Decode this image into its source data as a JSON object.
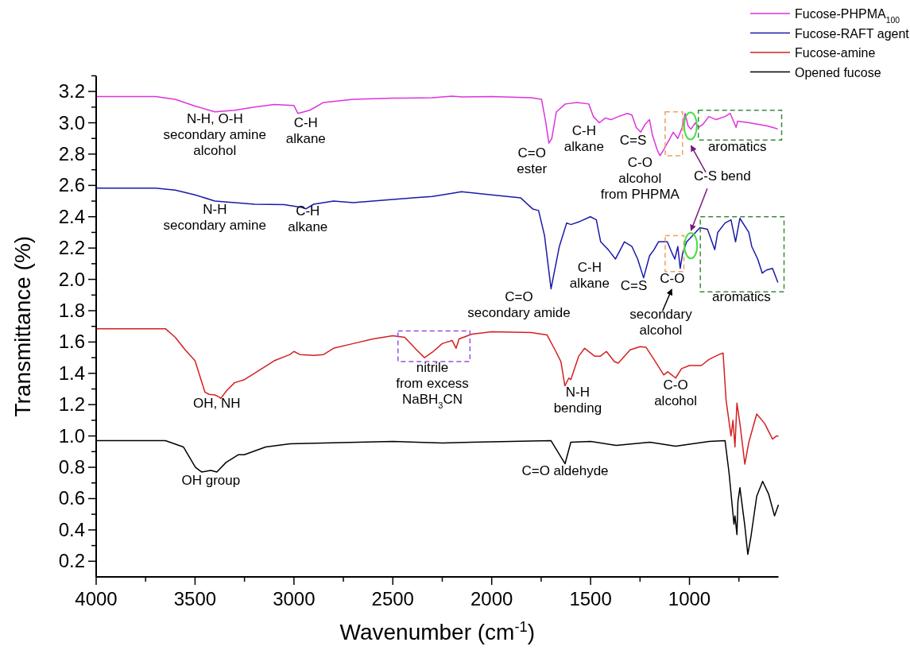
{
  "chart_data": {
    "type": "line",
    "xlabel": "Wavenumber (cm$^{-1}$)",
    "ylabel": "Transmittance (%)",
    "xlim": [
      4000,
      550
    ],
    "ylim": [
      0.1,
      3.3
    ],
    "xticks": [
      4000,
      {
        "value": 3750,
        "label": null
      },
      3500,
      {
        "value": 3250,
        "label": null
      },
      3000,
      {
        "value": 2750,
        "label": null
      },
      2500,
      {
        "value": 2250,
        "label": null
      },
      2000,
      {
        "value": 1750,
        "label": null
      },
      1500,
      {
        "value": 1250,
        "label": null
      },
      1000,
      {
        "value": 750,
        "label": null
      }
    ],
    "yticks": [
      0.2,
      {
        "value": 0.3,
        "label": null
      },
      0.4,
      {
        "value": 0.5,
        "label": null
      },
      0.6,
      {
        "value": 0.7,
        "label": null
      },
      0.8,
      {
        "value": 0.9,
        "label": null
      },
      {
        "value": 1,
        "label": "1.0"
      },
      {
        "value": 1.1,
        "label": null
      },
      1.2,
      {
        "value": 1.3,
        "label": null
      },
      1.4,
      {
        "value": 1.5,
        "label": null
      },
      1.6,
      {
        "value": 1.7,
        "label": null
      },
      1.8,
      {
        "value": 1.9,
        "label": null
      },
      {
        "value": 2,
        "label": "2.0"
      },
      {
        "value": 2.1,
        "label": null
      },
      2.2,
      {
        "value": 2.3,
        "label": null
      },
      2.4,
      {
        "value": 2.5,
        "label": null
      },
      2.6,
      {
        "value": 2.7,
        "label": null
      },
      2.8,
      {
        "value": 2.9,
        "label": null
      },
      {
        "value": 3,
        "label": "3.0"
      },
      {
        "value": 3.1,
        "label": null
      },
      3.2,
      {
        "value": 3.3,
        "label": null
      }
    ],
    "grid": false,
    "legend": "top right",
    "line_style": "solid",
    "marker": "none",
    "series": [
      {
        "name": "Fucose-PHPMA$_{100}$",
        "color": "#dd33dd",
        "x": [
          4000,
          3700,
          3600,
          3500,
          3400,
          3300,
          3200,
          3100,
          3000,
          2980,
          2950,
          2920,
          2850,
          2700,
          2500,
          2300,
          2200,
          2150,
          2000,
          1800,
          1748,
          1726,
          1711,
          1696,
          1673,
          1628,
          1569,
          1509,
          1486,
          1456,
          1426,
          1396,
          1359,
          1314,
          1291,
          1269,
          1247,
          1224,
          1202,
          1187,
          1164,
          1149,
          1134,
          1112,
          1082,
          1059,
          1037,
          1022,
          1007,
          992,
          970,
          955,
          932,
          902,
          865,
          820,
          794,
          764,
          757,
          697,
          652,
          607,
          577,
          553
        ],
        "values": [
          3.167,
          3.167,
          3.15,
          3.107,
          3.07,
          3.08,
          3.1,
          3.117,
          3.11,
          3.06,
          3.07,
          3.08,
          3.13,
          3.15,
          3.157,
          3.16,
          3.17,
          3.165,
          3.167,
          3.16,
          3.15,
          3.0,
          2.87,
          2.9,
          3.07,
          3.12,
          3.13,
          3.12,
          3.04,
          3.0,
          3.03,
          3.02,
          3.04,
          3.06,
          3.05,
          2.97,
          2.94,
          2.99,
          3.02,
          2.92,
          2.83,
          2.79,
          2.82,
          2.87,
          2.94,
          2.9,
          2.97,
          3.06,
          2.98,
          2.96,
          3.0,
          2.97,
          2.99,
          3.04,
          3.02,
          3.04,
          3.06,
          2.97,
          3.01,
          3.0,
          2.99,
          2.98,
          2.97,
          2.96
        ]
      },
      {
        "name": "Fucose-RAFT agent",
        "color": "#1a1aa8",
        "x": [
          4000,
          3700,
          3600,
          3500,
          3400,
          3300,
          3200,
          3050,
          2960,
          2940,
          2900,
          2800,
          2700,
          2600,
          2500,
          2400,
          2300,
          2200,
          2153,
          2000,
          1853,
          1793,
          1763,
          1733,
          1700,
          1658,
          1621,
          1599,
          1554,
          1501,
          1471,
          1449,
          1411,
          1374,
          1329,
          1291,
          1262,
          1232,
          1202,
          1179,
          1157,
          1112,
          1089,
          1074,
          1059,
          1047,
          1034,
          1014,
          984,
          947,
          909,
          872,
          857,
          820,
          790,
          767,
          745,
          700,
          685,
          655,
          632,
          610,
          580,
          553
        ],
        "values": [
          2.583,
          2.583,
          2.57,
          2.54,
          2.5,
          2.49,
          2.48,
          2.478,
          2.46,
          2.45,
          2.48,
          2.5,
          2.49,
          2.5,
          2.51,
          2.52,
          2.53,
          2.55,
          2.56,
          2.54,
          2.52,
          2.45,
          2.44,
          2.28,
          1.94,
          2.21,
          2.36,
          2.35,
          2.37,
          2.4,
          2.38,
          2.24,
          2.19,
          2.13,
          2.24,
          2.21,
          2.13,
          2.01,
          2.15,
          2.19,
          2.24,
          2.24,
          2.17,
          2.13,
          2.21,
          2.07,
          2.17,
          2.24,
          2.28,
          2.33,
          2.32,
          2.19,
          2.3,
          2.36,
          2.38,
          2.24,
          2.39,
          2.3,
          2.21,
          2.13,
          2.04,
          2.06,
          2.07,
          1.98
        ]
      },
      {
        "name": "Fucose-amine",
        "color": "#d42020",
        "x": [
          4000,
          3650,
          3600,
          3550,
          3500,
          3470,
          3450,
          3430,
          3400,
          3380,
          3370,
          3340,
          3300,
          3250,
          3200,
          3100,
          3020,
          3000,
          2970,
          2900,
          2850,
          2800,
          2700,
          2600,
          2500,
          2440,
          2380,
          2340,
          2300,
          2250,
          2200,
          2180,
          2165,
          2100,
          2000,
          1800,
          1720,
          1680,
          1650,
          1630,
          1610,
          1600,
          1560,
          1530,
          1480,
          1450,
          1420,
          1380,
          1360,
          1300,
          1250,
          1220,
          1180,
          1130,
          1110,
          1070,
          1040,
          1000,
          940,
          900,
          850,
          830,
          815,
          790,
          780,
          770,
          760,
          745,
          720,
          700,
          660,
          620,
          580,
          560,
          550
        ],
        "values": [
          1.685,
          1.685,
          1.63,
          1.55,
          1.48,
          1.36,
          1.28,
          1.266,
          1.262,
          1.25,
          1.24,
          1.29,
          1.34,
          1.36,
          1.4,
          1.48,
          1.52,
          1.54,
          1.52,
          1.515,
          1.52,
          1.56,
          1.59,
          1.62,
          1.64,
          1.63,
          1.55,
          1.5,
          1.535,
          1.59,
          1.61,
          1.56,
          1.62,
          1.65,
          1.665,
          1.66,
          1.645,
          1.55,
          1.475,
          1.32,
          1.37,
          1.36,
          1.51,
          1.56,
          1.51,
          1.51,
          1.54,
          1.475,
          1.465,
          1.55,
          1.57,
          1.567,
          1.49,
          1.39,
          1.41,
          1.37,
          1.43,
          1.45,
          1.45,
          1.49,
          1.52,
          1.53,
          1.23,
          1.0,
          1.1,
          0.93,
          1.21,
          1.08,
          0.82,
          0.96,
          1.14,
          1.08,
          0.98,
          1.0,
          1.0
        ]
      },
      {
        "name": "Opened fucose",
        "color": "#000000",
        "x": [
          4000,
          3650,
          3559,
          3498,
          3467,
          3420,
          3390,
          3344,
          3282,
          3251,
          3143,
          3020,
          2500,
          2250,
          2100,
          1700,
          1629,
          1600,
          1500,
          1370,
          1200,
          1070,
          900,
          820,
          800,
          775,
          770,
          760,
          755,
          745,
          720,
          705,
          690,
          660,
          630,
          600,
          570,
          550
        ],
        "values": [
          0.97,
          0.97,
          0.93,
          0.8,
          0.77,
          0.78,
          0.77,
          0.83,
          0.88,
          0.88,
          0.93,
          0.95,
          0.965,
          0.955,
          0.96,
          0.97,
          0.823,
          0.96,
          0.965,
          0.94,
          0.96,
          0.935,
          0.965,
          0.97,
          0.766,
          0.436,
          0.49,
          0.37,
          0.58,
          0.67,
          0.425,
          0.244,
          0.35,
          0.615,
          0.71,
          0.63,
          0.49,
          0.56
        ]
      }
    ],
    "annotations": [
      "N-H, O-H\nsecondary amine\nalcohol",
      "C-H\nalkane",
      "N-H\nsecondary amine",
      "C-H\nalkane",
      "OH, NH",
      "OH group",
      "nitrile\nfrom excess\nNaBH$_{3}$CN",
      "C=O aldehyde",
      "N-H\nbending",
      "C-O\nalcohol",
      "C=O\nester",
      "C-H\nalkane",
      "C=S",
      "C-O\nalcohol\nfrom PHPMA",
      "aromatics",
      "C-S bend",
      "C=O\nsecondary amide",
      "C-H\nalkane",
      "C=S",
      "C-O",
      "secondary\nalcohol",
      "aromatics"
    ]
  }
}
